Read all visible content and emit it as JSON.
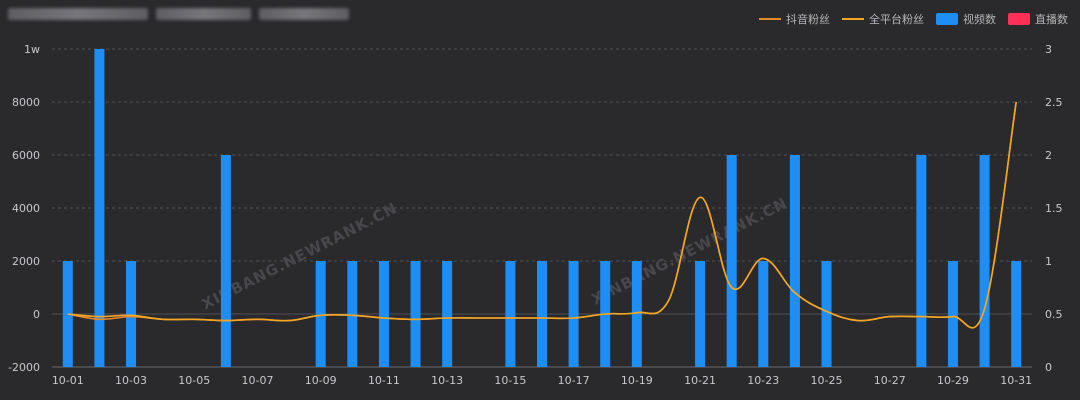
{
  "colors": {
    "background": "#2a2a2d",
    "grid": "#505055",
    "axis_text": "#c8c8cc",
    "douyin_fans": "#e58a2b",
    "all_platform_fans": "#f5a623",
    "videos": "#1e8ef7",
    "lives": "#ff3058",
    "watermark": "#48484c"
  },
  "legend": [
    {
      "name": "抖音粉丝",
      "type": "line",
      "color_key": "douyin_fans"
    },
    {
      "name": "全平台粉丝",
      "type": "line",
      "color_key": "all_platform_fans"
    },
    {
      "name": "视频数",
      "type": "box",
      "color_key": "videos"
    },
    {
      "name": "直播数",
      "type": "box",
      "color_key": "lives"
    }
  ],
  "watermark": "XINBANG.NEWRANK.CN",
  "chart_data": {
    "type": "bar",
    "xlabel": "",
    "categories": [
      "10-01",
      "10-02",
      "10-03",
      "10-04",
      "10-05",
      "10-06",
      "10-07",
      "10-08",
      "10-09",
      "10-10",
      "10-11",
      "10-12",
      "10-13",
      "10-14",
      "10-15",
      "10-16",
      "10-17",
      "10-18",
      "10-19",
      "10-20",
      "10-21",
      "10-22",
      "10-23",
      "10-24",
      "10-25",
      "10-26",
      "10-27",
      "10-28",
      "10-29",
      "10-30",
      "10-31"
    ],
    "x_tick_labels": [
      "10-01",
      "10-03",
      "10-05",
      "10-07",
      "10-09",
      "10-11",
      "10-13",
      "10-15",
      "10-17",
      "10-19",
      "10-21",
      "10-23",
      "10-25",
      "10-27",
      "10-29",
      "10-31"
    ],
    "y_left": {
      "range": [
        -2000,
        10000
      ],
      "ticks": [
        -2000,
        0,
        2000,
        4000,
        6000,
        8000,
        10000
      ],
      "tick_labels": [
        "-2000",
        "0",
        "2000",
        "4000",
        "6000",
        "8000",
        "1w"
      ]
    },
    "y_right": {
      "range": [
        0,
        3
      ],
      "ticks": [
        0,
        0.5,
        1,
        1.5,
        2,
        2.5,
        3
      ],
      "tick_labels": [
        "0",
        "0.5",
        "1",
        "1.5",
        "2",
        "2.5",
        "3"
      ]
    },
    "grid": true,
    "legend_position": "top-right",
    "series": [
      {
        "name": "视频数",
        "type": "bar",
        "axis": "right",
        "color_key": "videos",
        "values": [
          1,
          3,
          1,
          0,
          0,
          2,
          0,
          0,
          1,
          1,
          1,
          1,
          1,
          0,
          1,
          1,
          1,
          1,
          1,
          0,
          1,
          2,
          1,
          2,
          1,
          0,
          0,
          2,
          1,
          2,
          1
        ]
      },
      {
        "name": "直播数",
        "type": "bar",
        "axis": "right",
        "color_key": "lives",
        "values": [
          0,
          0,
          0,
          0,
          0,
          0,
          0,
          0,
          0,
          0,
          0,
          0,
          0,
          0,
          0,
          0,
          0,
          0,
          0,
          0,
          0,
          0,
          0,
          0,
          0,
          0,
          0,
          0,
          0,
          0,
          0
        ]
      },
      {
        "name": "抖音粉丝",
        "type": "line",
        "axis": "left",
        "color_key": "douyin_fans",
        "values": [
          0,
          -200,
          -100,
          -200,
          -200,
          -250,
          -200,
          -250,
          -50,
          -50,
          -150,
          -200,
          -150,
          -150,
          -150,
          -150,
          -150,
          0,
          50,
          500,
          4400,
          1000,
          2100,
          800,
          100,
          -250,
          -100,
          -100,
          -100,
          200,
          8000
        ]
      },
      {
        "name": "全平台粉丝",
        "type": "line",
        "axis": "left",
        "color_key": "all_platform_fans",
        "values": [
          0,
          -100,
          -50,
          -200,
          -200,
          -250,
          -200,
          -250,
          -50,
          -50,
          -150,
          -200,
          -150,
          -150,
          -150,
          -150,
          -150,
          0,
          50,
          500,
          4400,
          1000,
          2100,
          800,
          100,
          -250,
          -100,
          -100,
          -100,
          200,
          8000
        ]
      }
    ]
  }
}
